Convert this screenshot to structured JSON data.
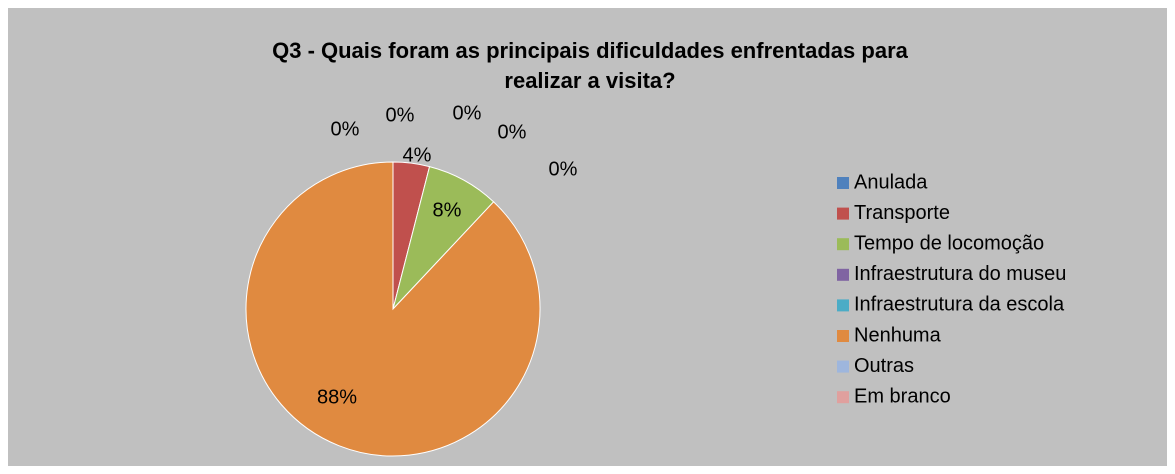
{
  "chart_data": {
    "type": "pie",
    "title": "Q3 - Quais foram as principais dificuldades enfrentadas para realizar a visita?",
    "categories": [
      "Anulada",
      "Transporte",
      "Tempo de locomoção",
      "Infraestrutura do museu",
      "Infraestrutura da escola",
      "Nenhuma",
      "Outras",
      "Em branco"
    ],
    "values": [
      0,
      4,
      8,
      0,
      0,
      88,
      0,
      0
    ],
    "value_labels": [
      "0%",
      "4%",
      "8%",
      "0%",
      "0%",
      "88%",
      "0%",
      "0%"
    ],
    "colors": [
      "#4f81bd",
      "#c0504d",
      "#9bbb59",
      "#8064a2",
      "#4bacc6",
      "#e08a40",
      "#9eb6dd",
      "#e0a09e"
    ],
    "legend": "right"
  }
}
